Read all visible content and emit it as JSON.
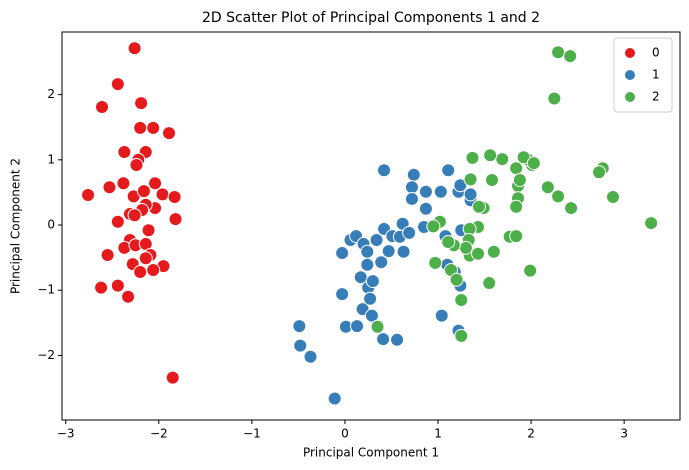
{
  "chart_data": {
    "type": "scatter",
    "title": "2D Scatter Plot of Principal Components 1 and 2",
    "x_label": "Principal Component 1",
    "y_label": "Principal Component 2",
    "xlim": [
      -3.04,
      3.6
    ],
    "ylim": [
      -2.99,
      2.96
    ],
    "xticks": [
      {
        "value": -3,
        "label": "−3"
      },
      {
        "value": -2,
        "label": "−2"
      },
      {
        "value": -1,
        "label": "−1"
      },
      0,
      1,
      2,
      3
    ],
    "yticks": [
      {
        "value": -2,
        "label": "−2"
      },
      {
        "value": -1,
        "label": "−1"
      },
      0,
      1,
      2
    ],
    "legend": "upper right",
    "series": [
      {
        "name": "0",
        "color": "#e41a1c",
        "x": [
          -2.26,
          -2.44,
          -2.61,
          -2.19,
          -2.2,
          -2.06,
          -1.89,
          -2.37,
          -2.14,
          -2.22,
          -2.04,
          -2.38,
          -2.53,
          -2.76,
          -2.27,
          -2.16,
          -1.96,
          -1.83,
          -2.04,
          -2.14,
          -2.18,
          -2.31,
          -2.44,
          -2.26,
          -1.82,
          -2.31,
          -2.37,
          -2.25,
          -2.14,
          -2.09,
          -2.14,
          -2.55,
          -2.28,
          -1.95,
          -2.06,
          -2.2,
          -2.44,
          -2.62,
          -2.33,
          -1.85,
          -2.24,
          -2.11
        ],
        "values": [
          2.71,
          2.16,
          1.81,
          1.87,
          1.49,
          1.49,
          1.41,
          1.12,
          1.12,
          1.0,
          0.64,
          0.64,
          0.58,
          0.46,
          0.44,
          0.52,
          0.47,
          0.43,
          0.26,
          0.31,
          0.23,
          0.17,
          0.05,
          0.15,
          0.09,
          -0.23,
          -0.35,
          -0.31,
          -0.29,
          -0.46,
          -0.51,
          -0.46,
          -0.6,
          -0.63,
          -0.69,
          -0.72,
          -0.93,
          -0.96,
          -1.1,
          -2.34,
          0.92,
          -0.08
        ]
      },
      {
        "name": "1",
        "color": "#377eb8",
        "x": [
          -0.49,
          -0.48,
          -0.37,
          -0.11,
          -0.03,
          -0.03,
          0.01,
          0.06,
          0.12,
          0.13,
          0.17,
          0.2,
          0.24,
          0.24,
          0.25,
          0.19,
          0.27,
          0.29,
          0.3,
          0.34,
          0.39,
          0.42,
          0.42,
          0.41,
          0.47,
          0.51,
          0.56,
          0.59,
          0.62,
          0.63,
          0.69,
          0.74,
          0.72,
          0.72,
          0.87,
          0.87,
          1.03,
          1.04,
          1.08,
          1.11,
          1.1,
          1.22,
          1.24,
          1.25,
          1.24,
          1.22,
          1.35,
          1.35,
          0.85,
          1.18
        ],
        "values": [
          -1.55,
          -1.85,
          -2.02,
          -2.66,
          -0.43,
          -1.06,
          -1.56,
          -0.23,
          -0.17,
          -1.55,
          -0.8,
          -0.29,
          -0.41,
          -0.61,
          -0.96,
          -1.29,
          -1.13,
          -1.39,
          -0.86,
          -0.23,
          -0.57,
          -0.06,
          0.84,
          -1.75,
          -0.4,
          -0.17,
          -1.76,
          -0.18,
          0.02,
          -0.41,
          -0.12,
          0.77,
          0.58,
          0.4,
          0.51,
          0.25,
          0.51,
          -1.39,
          -0.17,
          0.84,
          -0.61,
          0.51,
          0.61,
          -0.08,
          -0.93,
          -1.62,
          0.38,
          0.47,
          -0.03,
          -0.72
        ]
      },
      {
        "name": "2",
        "color": "#4daf4a",
        "x": [
          2.29,
          2.42,
          2.25,
          3.29,
          2.88,
          2.77,
          2.73,
          2.43,
          2.29,
          2.18,
          2.01,
          1.97,
          1.92,
          2.03,
          1.84,
          1.86,
          1.88,
          1.86,
          1.84,
          1.69,
          1.56,
          1.58,
          1.37,
          1.35,
          1.49,
          1.44,
          1.43,
          1.34,
          1.33,
          1.34,
          1.43,
          1.6,
          1.55,
          1.3,
          1.17,
          1.11,
          1.02,
          0.95,
          0.97,
          1.14,
          1.2,
          1.25,
          1.25,
          0.35,
          1.77,
          1.84,
          1.99
        ],
        "values": [
          2.65,
          2.59,
          1.94,
          0.03,
          0.43,
          0.87,
          0.81,
          0.26,
          0.44,
          0.58,
          0.92,
          1.0,
          1.04,
          0.95,
          0.87,
          0.6,
          0.69,
          0.41,
          0.28,
          1.01,
          1.07,
          0.69,
          1.03,
          0.7,
          0.26,
          0.28,
          -0.03,
          -0.06,
          -0.23,
          -0.47,
          -0.44,
          -0.41,
          -0.89,
          -0.35,
          -0.31,
          -0.26,
          0.05,
          -0.02,
          -0.58,
          -0.69,
          -0.84,
          -1.15,
          -1.7,
          -1.56,
          -0.18,
          -0.17,
          -0.7
        ]
      }
    ]
  }
}
